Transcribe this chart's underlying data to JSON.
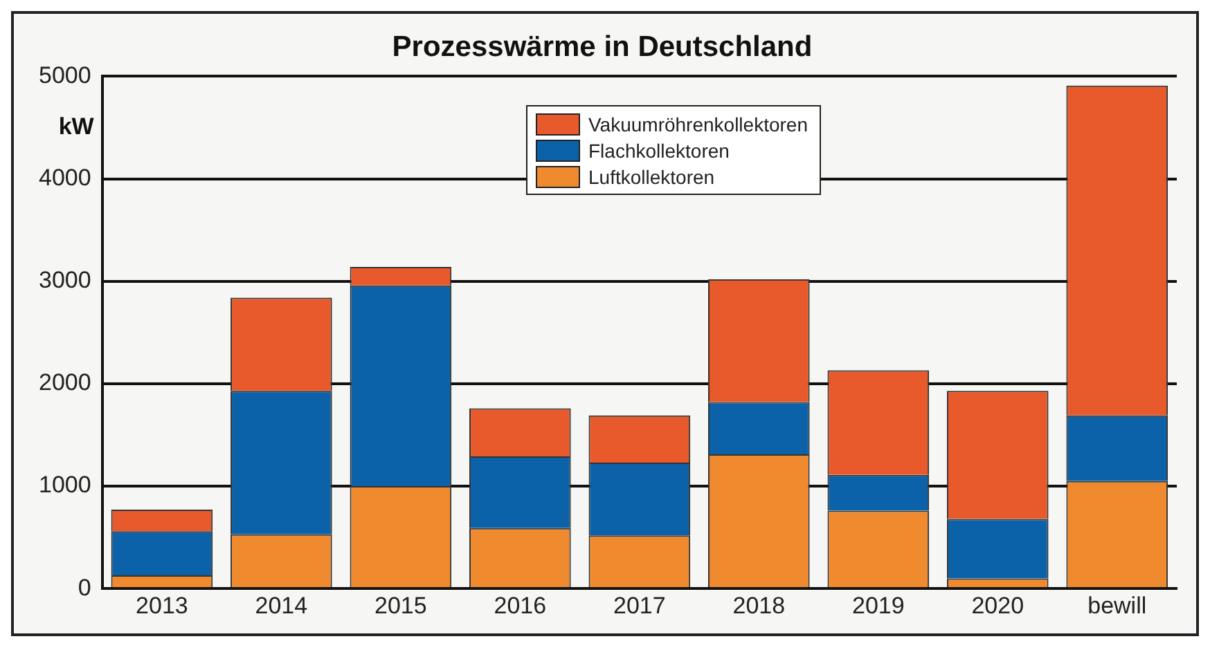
{
  "chart_data": {
    "type": "bar",
    "title": "Prozesswärme in Deutschland",
    "ylabel": "kW",
    "stacked": true,
    "categories": [
      "2013",
      "2014",
      "2015",
      "2016",
      "2017",
      "2018",
      "2019",
      "2020",
      "bewill"
    ],
    "series": [
      {
        "name": "Luftkollektoren",
        "color": "#ef8a2e",
        "values": [
          130,
          530,
          1000,
          590,
          520,
          1310,
          760,
          100,
          1050
        ]
      },
      {
        "name": "Flachkollektoren",
        "color": "#0b62a8",
        "values": [
          430,
          1400,
          1960,
          700,
          710,
          510,
          350,
          580,
          640
        ]
      },
      {
        "name": "Vakuumröhrenkollektoren",
        "color": "#e85a2c",
        "values": [
          210,
          910,
          180,
          470,
          460,
          1200,
          1020,
          1250,
          3220
        ]
      }
    ],
    "ylim": [
      0,
      5000
    ],
    "yticks": [
      0,
      1000,
      2000,
      3000,
      4000,
      5000
    ],
    "grid": "y",
    "legend": "top"
  }
}
